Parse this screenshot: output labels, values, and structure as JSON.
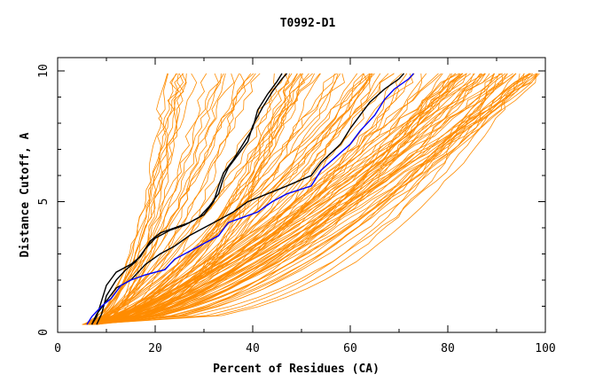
{
  "chart_data": {
    "type": "line",
    "title": "T0992-D1",
    "xlabel": "Percent of Residues (CA)",
    "ylabel": "Distance Cutoff, A",
    "xlim": [
      0,
      100
    ],
    "ylim": [
      0,
      10
    ],
    "x_ticks": [
      0,
      20,
      40,
      60,
      80,
      100
    ],
    "y_ticks": [
      0,
      5,
      10
    ],
    "x_tick_labels": [
      "0",
      "20",
      "40",
      "60",
      "80",
      "100"
    ],
    "y_tick_labels": [
      "0",
      "5",
      "10"
    ],
    "grid": false,
    "legend": "none",
    "colors": {
      "background_models": "#ff8c00",
      "highlight_black": "#000000",
      "highlight_blue": "#0000ff"
    },
    "background_series_count": 120,
    "background_envelope": {
      "x_at_bottom_min": 5,
      "x_at_bottom_max": 8,
      "x_at_top_min": 21,
      "x_at_top_max": 100
    },
    "series": [
      {
        "color": "#000000",
        "points": [
          [
            7,
            0.3
          ],
          [
            8,
            0.6
          ],
          [
            9,
            1.2
          ],
          [
            10,
            1.8
          ],
          [
            12,
            2.3
          ],
          [
            15,
            2.6
          ],
          [
            17,
            2.9
          ],
          [
            19,
            3.5
          ],
          [
            21,
            3.8
          ],
          [
            24,
            4.0
          ],
          [
            27,
            4.2
          ],
          [
            30,
            4.5
          ],
          [
            32,
            5.0
          ],
          [
            33,
            5.6
          ],
          [
            34,
            6.1
          ],
          [
            36,
            6.6
          ],
          [
            38,
            7.2
          ],
          [
            40,
            7.8
          ],
          [
            41,
            8.5
          ],
          [
            43,
            9.1
          ],
          [
            45,
            9.6
          ],
          [
            46,
            9.9
          ]
        ]
      },
      {
        "color": "#000000",
        "points": [
          [
            8,
            0.3
          ],
          [
            9,
            0.7
          ],
          [
            10,
            1.4
          ],
          [
            12,
            2.0
          ],
          [
            14,
            2.4
          ],
          [
            16,
            2.7
          ],
          [
            18,
            3.2
          ],
          [
            20,
            3.6
          ],
          [
            23,
            3.9
          ],
          [
            26,
            4.1
          ],
          [
            29,
            4.4
          ],
          [
            31,
            4.8
          ],
          [
            33,
            5.3
          ],
          [
            34,
            5.9
          ],
          [
            35,
            6.3
          ],
          [
            37,
            6.8
          ],
          [
            39,
            7.3
          ],
          [
            40,
            7.9
          ],
          [
            42,
            8.6
          ],
          [
            44,
            9.2
          ],
          [
            46,
            9.7
          ],
          [
            47,
            9.9
          ]
        ]
      },
      {
        "color": "#000000",
        "points": [
          [
            7,
            0.3
          ],
          [
            8,
            0.7
          ],
          [
            10,
            1.2
          ],
          [
            12,
            1.7
          ],
          [
            15,
            2.0
          ],
          [
            18,
            2.6
          ],
          [
            21,
            3.0
          ],
          [
            24,
            3.3
          ],
          [
            27,
            3.7
          ],
          [
            30,
            4.0
          ],
          [
            33,
            4.3
          ],
          [
            36,
            4.6
          ],
          [
            39,
            5.0
          ],
          [
            43,
            5.3
          ],
          [
            47,
            5.6
          ],
          [
            52,
            6.0
          ],
          [
            54,
            6.5
          ],
          [
            58,
            7.2
          ],
          [
            60,
            7.8
          ],
          [
            62,
            8.3
          ],
          [
            64,
            8.8
          ],
          [
            67,
            9.3
          ],
          [
            70,
            9.7
          ],
          [
            71,
            9.9
          ]
        ]
      },
      {
        "color": "#0000ff",
        "points": [
          [
            6,
            0.3
          ],
          [
            7,
            0.6
          ],
          [
            9,
            1.0
          ],
          [
            11,
            1.3
          ],
          [
            13,
            1.8
          ],
          [
            15,
            2.0
          ],
          [
            18,
            2.2
          ],
          [
            22,
            2.4
          ],
          [
            24,
            2.8
          ],
          [
            27,
            3.1
          ],
          [
            30,
            3.4
          ],
          [
            33,
            3.7
          ],
          [
            35,
            4.2
          ],
          [
            38,
            4.4
          ],
          [
            41,
            4.6
          ],
          [
            44,
            5.0
          ],
          [
            47,
            5.3
          ],
          [
            52,
            5.6
          ],
          [
            54,
            6.2
          ],
          [
            57,
            6.7
          ],
          [
            60,
            7.2
          ],
          [
            62,
            7.7
          ],
          [
            65,
            8.3
          ],
          [
            67,
            8.9
          ],
          [
            69,
            9.3
          ],
          [
            72,
            9.7
          ],
          [
            73,
            9.9
          ]
        ]
      }
    ]
  }
}
